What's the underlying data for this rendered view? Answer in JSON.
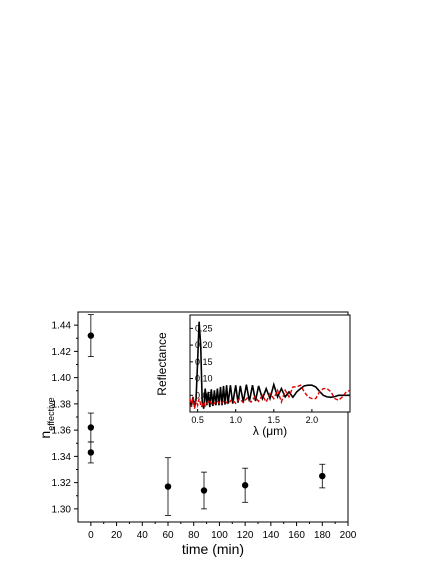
{
  "chart_data": [
    {
      "type": "scatter",
      "xlabel": "time (min)",
      "ylabel": {
        "main": "n",
        "subscript": "effective"
      },
      "xlim": [
        -10,
        200
      ],
      "ylim": [
        1.29,
        1.45
      ],
      "xticks": [
        0,
        20,
        40,
        60,
        80,
        100,
        120,
        140,
        160,
        180,
        200
      ],
      "yticks": [
        1.3,
        1.32,
        1.34,
        1.36,
        1.38,
        1.4,
        1.42,
        1.44
      ],
      "ytick_labels": [
        "1.30",
        "1.32",
        "1.34",
        "1.36",
        "1.38",
        "1.40",
        "1.42",
        "1.44"
      ],
      "grid": false,
      "series": [
        {
          "color": "#000000",
          "marker": "circle",
          "points": [
            {
              "x": 0,
              "y": 1.432,
              "err": 0.016
            },
            {
              "x": 0,
              "y": 1.362,
              "err": 0.011
            },
            {
              "x": 0,
              "y": 1.343,
              "err": 0.008
            },
            {
              "x": 60,
              "y": 1.317,
              "err": 0.022
            },
            {
              "x": 88,
              "y": 1.314,
              "err": 0.014
            },
            {
              "x": 120,
              "y": 1.318,
              "err": 0.013
            },
            {
              "x": 180,
              "y": 1.325,
              "err": 0.009
            }
          ]
        }
      ]
    },
    {
      "type": "line",
      "role": "inset",
      "xlabel": "λ (μm)",
      "ylabel": "Reflectance",
      "xlim": [
        0.4,
        2.5
      ],
      "ylim": [
        0.0,
        0.29
      ],
      "xticks": [
        0.5,
        1.0,
        1.5,
        2.0
      ],
      "xtick_labels": [
        "0.5",
        "1.0",
        "1.5",
        "2.0"
      ],
      "yticks": [
        0.05,
        0.1,
        0.15,
        0.2,
        0.25
      ],
      "ytick_labels": [
        "0.05",
        "0.10",
        "0.15",
        "0.20",
        "0.25"
      ],
      "grid": false,
      "series": [
        {
          "color": "#000000",
          "style": "solid",
          "x": [
            0.4,
            0.42,
            0.44,
            0.46,
            0.48,
            0.5,
            0.52,
            0.54,
            0.56,
            0.58,
            0.6,
            0.62,
            0.64,
            0.66,
            0.68,
            0.7,
            0.72,
            0.74,
            0.76,
            0.78,
            0.8,
            0.82,
            0.84,
            0.86,
            0.88,
            0.9,
            0.93,
            0.96,
            1.0,
            1.03,
            1.06,
            1.1,
            1.14,
            1.18,
            1.22,
            1.26,
            1.3,
            1.35,
            1.4,
            1.45,
            1.5,
            1.55,
            1.6,
            1.65,
            1.7,
            1.75,
            1.8,
            1.85,
            1.9,
            1.95,
            2.0,
            2.05,
            2.1,
            2.15,
            2.2,
            2.25,
            2.3,
            2.35,
            2.4,
            2.45,
            2.5
          ],
          "y": [
            0.035,
            0.02,
            0.045,
            0.015,
            0.04,
            0.15,
            0.27,
            0.2,
            0.03,
            0.01,
            0.07,
            0.02,
            0.06,
            0.015,
            0.068,
            0.018,
            0.065,
            0.02,
            0.07,
            0.02,
            0.075,
            0.02,
            0.078,
            0.022,
            0.08,
            0.025,
            0.08,
            0.025,
            0.08,
            0.028,
            0.078,
            0.03,
            0.082,
            0.032,
            0.08,
            0.033,
            0.078,
            0.04,
            0.07,
            0.04,
            0.082,
            0.045,
            0.07,
            0.045,
            0.06,
            0.044,
            0.06,
            0.07,
            0.078,
            0.08,
            0.08,
            0.075,
            0.062,
            0.05,
            0.045,
            0.044,
            0.046,
            0.05,
            0.05,
            0.05,
            0.05
          ]
        },
        {
          "color": "#e00000",
          "style": "dashed",
          "x": [
            0.4,
            0.42,
            0.44,
            0.46,
            0.48,
            0.5,
            0.52,
            0.55,
            0.58,
            0.6,
            0.65,
            0.7,
            0.75,
            0.8,
            0.85,
            0.9,
            0.95,
            1.0,
            1.05,
            1.1,
            1.15,
            1.2,
            1.25,
            1.3,
            1.35,
            1.4,
            1.45,
            1.5,
            1.55,
            1.6,
            1.65,
            1.7,
            1.75,
            1.8,
            1.85,
            1.9,
            1.95,
            2.0,
            2.05,
            2.1,
            2.15,
            2.2,
            2.25,
            2.3,
            2.35,
            2.4,
            2.45,
            2.5
          ],
          "y": [
            0.04,
            0.015,
            0.045,
            0.01,
            0.035,
            0.02,
            0.04,
            0.015,
            0.03,
            0.018,
            0.035,
            0.02,
            0.035,
            0.022,
            0.035,
            0.024,
            0.038,
            0.026,
            0.04,
            0.028,
            0.042,
            0.03,
            0.045,
            0.032,
            0.05,
            0.03,
            0.055,
            0.04,
            0.065,
            0.03,
            0.065,
            0.045,
            0.075,
            0.075,
            0.08,
            0.06,
            0.045,
            0.04,
            0.04,
            0.06,
            0.07,
            0.07,
            0.06,
            0.04,
            0.035,
            0.045,
            0.06,
            0.065
          ]
        }
      ]
    }
  ]
}
